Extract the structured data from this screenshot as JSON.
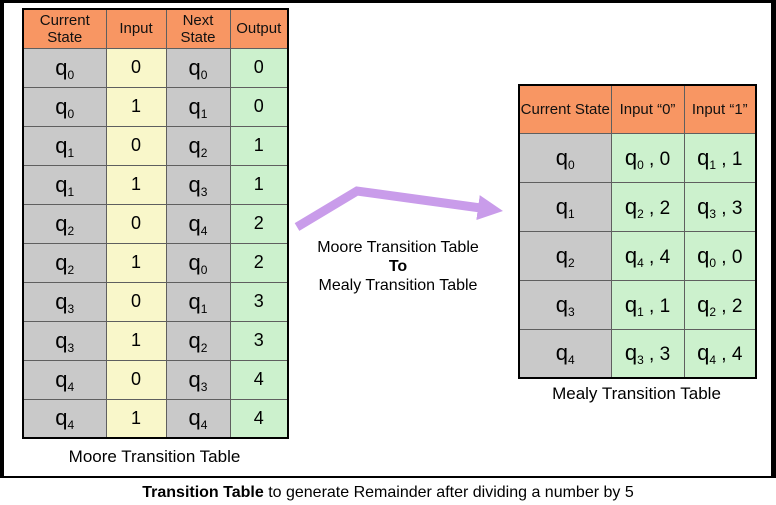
{
  "figure": {
    "caption_bold": "Transition Table",
    "caption_rest": " to generate Remainder after dividing a number by 5"
  },
  "arrow_label": {
    "line1": "Moore Transition Table",
    "line2": "To",
    "line3": "Mealy Transition Table"
  },
  "moore": {
    "caption": "Moore Transition Table",
    "headers": [
      "Current State",
      "Input",
      "Next State",
      "Output"
    ],
    "rows": [
      {
        "current": {
          "base": "q",
          "sub": "0"
        },
        "input": "0",
        "next": {
          "base": "q",
          "sub": "0"
        },
        "output": "0"
      },
      {
        "current": {
          "base": "q",
          "sub": "0"
        },
        "input": "1",
        "next": {
          "base": "q",
          "sub": "1"
        },
        "output": "0"
      },
      {
        "current": {
          "base": "q",
          "sub": "1"
        },
        "input": "0",
        "next": {
          "base": "q",
          "sub": "2"
        },
        "output": "1"
      },
      {
        "current": {
          "base": "q",
          "sub": "1"
        },
        "input": "1",
        "next": {
          "base": "q",
          "sub": "3"
        },
        "output": "1"
      },
      {
        "current": {
          "base": "q",
          "sub": "2"
        },
        "input": "0",
        "next": {
          "base": "q",
          "sub": "4"
        },
        "output": "2"
      },
      {
        "current": {
          "base": "q",
          "sub": "2"
        },
        "input": "1",
        "next": {
          "base": "q",
          "sub": "0"
        },
        "output": "2"
      },
      {
        "current": {
          "base": "q",
          "sub": "3"
        },
        "input": "0",
        "next": {
          "base": "q",
          "sub": "1"
        },
        "output": "3"
      },
      {
        "current": {
          "base": "q",
          "sub": "3"
        },
        "input": "1",
        "next": {
          "base": "q",
          "sub": "2"
        },
        "output": "3"
      },
      {
        "current": {
          "base": "q",
          "sub": "4"
        },
        "input": "0",
        "next": {
          "base": "q",
          "sub": "3"
        },
        "output": "4"
      },
      {
        "current": {
          "base": "q",
          "sub": "4"
        },
        "input": "1",
        "next": {
          "base": "q",
          "sub": "4"
        },
        "output": "4"
      }
    ]
  },
  "mealy": {
    "caption": "Mealy Transition Table",
    "headers": [
      "Current State",
      "Input “0”",
      "Input “1”"
    ],
    "rows": [
      {
        "state": {
          "base": "q",
          "sub": "0"
        },
        "input0": {
          "base": "q",
          "sub": "0",
          "rest": " , 0"
        },
        "input1": {
          "base": "q",
          "sub": "1",
          "rest": " , 1"
        }
      },
      {
        "state": {
          "base": "q",
          "sub": "1"
        },
        "input0": {
          "base": "q",
          "sub": "2",
          "rest": " , 2"
        },
        "input1": {
          "base": "q",
          "sub": "3",
          "rest": " , 3"
        }
      },
      {
        "state": {
          "base": "q",
          "sub": "2"
        },
        "input0": {
          "base": "q",
          "sub": "4",
          "rest": " , 4"
        },
        "input1": {
          "base": "q",
          "sub": "0",
          "rest": " , 0"
        }
      },
      {
        "state": {
          "base": "q",
          "sub": "3"
        },
        "input0": {
          "base": "q",
          "sub": "1",
          "rest": " , 1"
        },
        "input1": {
          "base": "q",
          "sub": "2",
          "rest": " , 2"
        }
      },
      {
        "state": {
          "base": "q",
          "sub": "4"
        },
        "input0": {
          "base": "q",
          "sub": "3",
          "rest": " , 3"
        },
        "input1": {
          "base": "q",
          "sub": "4",
          "rest": " , 4"
        }
      }
    ]
  },
  "colors": {
    "header_orange": "#F89663",
    "state_gray": "#C9C9C9",
    "input_yellow": "#F9F7CA",
    "output_green": "#CCF1CD",
    "arrow_purple": "#C99CEA"
  }
}
